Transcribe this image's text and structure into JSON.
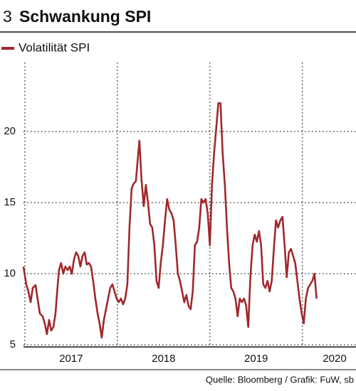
{
  "chart_data": {
    "type": "line",
    "number": "3",
    "title": "Schwankung SPI",
    "source": "Quelle: Bloomberg / Grafik: FuW, sb",
    "x": [
      2016.985,
      2017.015,
      2017.038,
      2017.062,
      2017.085,
      2017.115,
      2017.138,
      2017.162,
      2017.192,
      2017.215,
      2017.238,
      2017.262,
      2017.285,
      2017.308,
      2017.331,
      2017.346,
      2017.369,
      2017.392,
      2017.415,
      2017.438,
      2017.462,
      2017.485,
      2017.508,
      2017.531,
      2017.554,
      2017.577,
      2017.6,
      2017.623,
      2017.646,
      2017.669,
      2017.692,
      2017.715,
      2017.738,
      2017.762,
      2017.785,
      2017.808,
      2017.831,
      2017.854,
      2017.877,
      2017.9,
      2017.923,
      2017.946,
      2017.969,
      2017.992,
      2018.015,
      2018.038,
      2018.062,
      2018.085,
      2018.108,
      2018.131,
      2018.154,
      2018.177,
      2018.2,
      2018.223,
      2018.238,
      2018.262,
      2018.285,
      2018.308,
      2018.331,
      2018.354,
      2018.377,
      2018.4,
      2018.423,
      2018.446,
      2018.469,
      2018.492,
      2018.515,
      2018.538,
      2018.562,
      2018.585,
      2018.608,
      2018.631,
      2018.654,
      2018.677,
      2018.7,
      2018.723,
      2018.746,
      2018.769,
      2018.792,
      2018.815,
      2018.838,
      2018.862,
      2018.885,
      2018.908,
      2018.931,
      2018.954,
      2018.977,
      2019.0,
      2019.023,
      2019.046,
      2019.069,
      2019.092,
      2019.115,
      2019.138,
      2019.162,
      2019.185,
      2019.208,
      2019.231,
      2019.254,
      2019.277,
      2019.3,
      2019.323,
      2019.346,
      2019.369,
      2019.392,
      2019.415,
      2019.438,
      2019.462,
      2019.485,
      2019.508,
      2019.531,
      2019.554,
      2019.577,
      2019.6,
      2019.623,
      2019.646,
      2019.669,
      2019.692,
      2019.715,
      2019.738,
      2019.762,
      2019.785,
      2019.808,
      2019.831,
      2019.854,
      2019.877,
      2019.9,
      2019.923,
      2019.946,
      2019.969,
      2019.992,
      2020.015,
      2020.038,
      2020.062,
      2020.085,
      2020.108,
      2020.131,
      2020.154
    ],
    "series": [
      {
        "name": "Volatilität SPI",
        "color": "#a0282d",
        "values": [
          10.5,
          9.25,
          8.75,
          8.0,
          9.0,
          9.2,
          8.2,
          7.2,
          7.0,
          6.5,
          5.75,
          6.75,
          6.0,
          6.25,
          7.2,
          8.5,
          10.25,
          10.75,
          10.0,
          10.5,
          10.25,
          10.5,
          10.0,
          11.0,
          11.5,
          11.25,
          10.5,
          11.25,
          11.5,
          10.65,
          10.75,
          10.5,
          9.5,
          8.25,
          7.25,
          6.5,
          5.5,
          6.75,
          7.5,
          8.25,
          9.0,
          9.25,
          8.75,
          8.25,
          8.0,
          8.25,
          7.85,
          8.25,
          9.25,
          13.25,
          16.0,
          16.35,
          16.5,
          18.25,
          19.35,
          16.5,
          14.75,
          16.25,
          15.0,
          13.5,
          13.25,
          12.0,
          9.5,
          9.0,
          10.75,
          12.0,
          13.75,
          15.25,
          14.5,
          14.25,
          13.75,
          12.0,
          10.0,
          9.5,
          8.75,
          8.0,
          8.5,
          7.75,
          7.5,
          8.75,
          12.0,
          12.25,
          13.25,
          15.25,
          15.0,
          15.25,
          14.25,
          12.0,
          16.25,
          18.5,
          20.25,
          22.0,
          22.0,
          18.5,
          16.25,
          13.25,
          10.75,
          9.0,
          8.75,
          8.25,
          7.0,
          8.25,
          8.0,
          8.25,
          7.75,
          6.25,
          9.75,
          12.0,
          12.75,
          12.25,
          13.0,
          12.0,
          9.25,
          9.0,
          9.5,
          8.75,
          9.5,
          11.75,
          13.75,
          13.25,
          13.75,
          14.0,
          12.0,
          9.75,
          11.5,
          11.75,
          11.25,
          10.75,
          9.5,
          8.25,
          7.25,
          6.5,
          8.25,
          9.0,
          9.25,
          9.5,
          10.0,
          8.25
        ]
      }
    ],
    "xlim": [
      2016.985,
      2020.58
    ],
    "xticks": [
      2017,
      2018,
      2019,
      2020
    ],
    "ylim": [
      4.85,
      24.85
    ],
    "yticks": [
      5,
      10,
      15,
      20
    ],
    "grid": true
  }
}
